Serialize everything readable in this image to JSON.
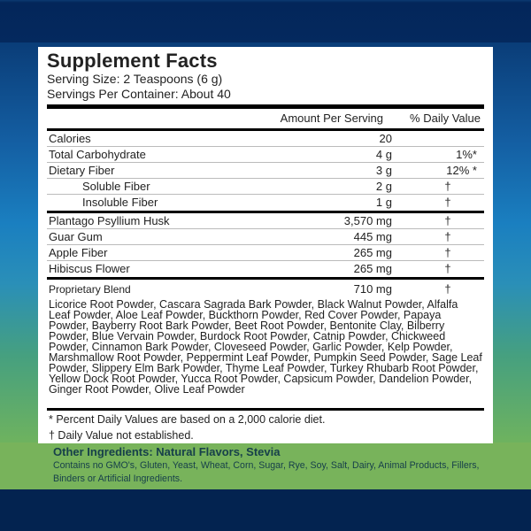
{
  "title": "Supplement Facts",
  "serving_size": "Serving Size: 2 Teaspoons (6 g)",
  "servings_per_container": "Servings Per Container: About 40",
  "header": {
    "amount": "Amount Per Serving",
    "dv": "% Daily Value"
  },
  "rows": [
    {
      "name": "Calories",
      "amount": "20",
      "dv": ""
    },
    {
      "name": "Total Carbohydrate",
      "amount": "4 g",
      "dv": "1%*"
    },
    {
      "name": "Dietary Fiber",
      "amount": "3 g",
      "dv": "12% *"
    },
    {
      "name": "Soluble Fiber",
      "amount": "2 g",
      "dv": "†"
    },
    {
      "name": "Insoluble Fiber",
      "amount": "1 g",
      "dv": "†"
    },
    {
      "name": "Plantago Psyllium Husk",
      "amount": "3,570 mg",
      "dv": "†"
    },
    {
      "name": "Guar Gum",
      "amount": "445 mg",
      "dv": "†"
    },
    {
      "name": "Apple Fiber",
      "amount": "265 mg",
      "dv": "†"
    },
    {
      "name": "Hibiscus Flower",
      "amount": "265 mg",
      "dv": "†"
    },
    {
      "name": "Proprietary Blend",
      "amount": "710 mg",
      "dv": "†"
    }
  ],
  "blend_ingredients": "Licorice Root Powder, Cascara Sagrada Bark Powder, Black Walnut Powder, Alfalfa Leaf Powder, Aloe Leaf Powder, Buckthorn Powder, Red Cover Powder, Papaya Powder, Bayberry Root Bark Powder, Beet Root Powder, Bentonite Clay, Bilberry Powder, Blue Vervain Powder, Burdock Root Powder, Catnip Powder, Chickweed Powder, Cinnamon Bark Powder, Cloveseed Powder, Garlic Powder, Kelp Powder, Marshmallow Root Powder, Peppermint Leaf Powder, Pumpkin Seed Powder, Sage Leaf Powder, Slippery Elm Bark Powder, Thyme Leaf Powder, Turkey Rhubarb Root Powder, Yellow Dock Root Powder, Yucca Root Powder, Capsicum Powder, Dandelion Powder, Ginger Root Powder, Olive Leaf Powder",
  "footnotes": [
    "* Percent Daily Values are based on a 2,000 calorie diet.",
    "†  Daily Value not established."
  ],
  "other_ingredients": "Other Ingredients:  Natural Flavors, Stevia",
  "contains_no": "Contains no GMO's, Gluten, Yeast, Wheat, Corn, Sugar, Rye, Soy, Salt, Dairy, Animal Products, Fillers, Binders or Artificial Ingredients.",
  "colors": {
    "navy": "#032350",
    "green": "#78b35b",
    "text_green": "#17404a"
  }
}
